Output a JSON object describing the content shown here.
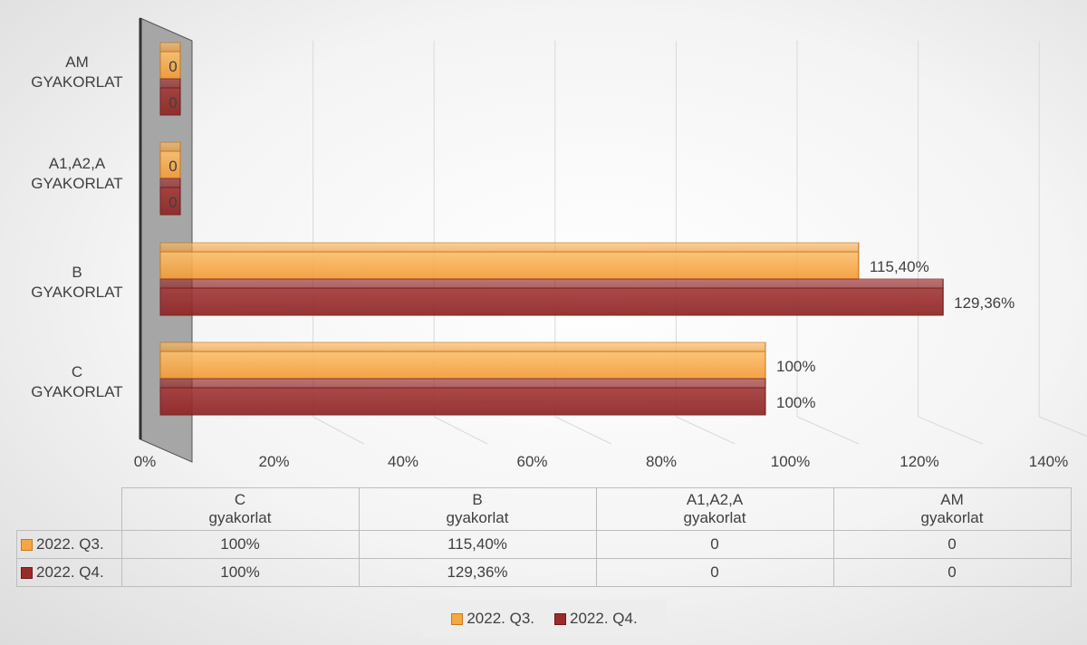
{
  "chart_data": {
    "type": "bar",
    "orientation": "horizontal",
    "categories_table": [
      "C\ngyakorlat",
      "B\ngyakorlat",
      "A1,A2,A\ngyakorlat",
      "AM\ngyakorlat"
    ],
    "category_axis": [
      {
        "line1": "AM",
        "line2": "GYAKORLAT"
      },
      {
        "line1": "A1,A2,A",
        "line2": "GYAKORLAT"
      },
      {
        "line1": "B",
        "line2": "GYAKORLAT"
      },
      {
        "line1": "C",
        "line2": "GYAKORLAT"
      }
    ],
    "series": [
      {
        "name": "2022. Q3.",
        "color": "#f5a742",
        "values": [
          100,
          115.4,
          0,
          0
        ],
        "labels": [
          "100%",
          "115,40%",
          "0",
          "0"
        ]
      },
      {
        "name": "2022. Q4.",
        "color": "#9c2b2b",
        "values": [
          100,
          129.36,
          0,
          0
        ],
        "labels": [
          "100%",
          "129,36%",
          "0",
          "0"
        ]
      }
    ],
    "xlim": [
      0,
      140
    ],
    "xticks": [
      "0%",
      "20%",
      "40%",
      "60%",
      "80%",
      "100%",
      "120%",
      "140%"
    ],
    "grid": true,
    "legend_position": "bottom",
    "data_table": {
      "headers": [
        {
          "line1": "C",
          "line2": "gyakorlat"
        },
        {
          "line1": "B",
          "line2": "gyakorlat"
        },
        {
          "line1": "A1,A2,A",
          "line2": "gyakorlat"
        },
        {
          "line1": "AM",
          "line2": "gyakorlat"
        }
      ],
      "rows": [
        {
          "series": "2022. Q3.",
          "cells": [
            "100%",
            "115,40%",
            "0",
            "0"
          ]
        },
        {
          "series": "2022. Q4.",
          "cells": [
            "100%",
            "129,36%",
            "0",
            "0"
          ]
        }
      ]
    }
  }
}
